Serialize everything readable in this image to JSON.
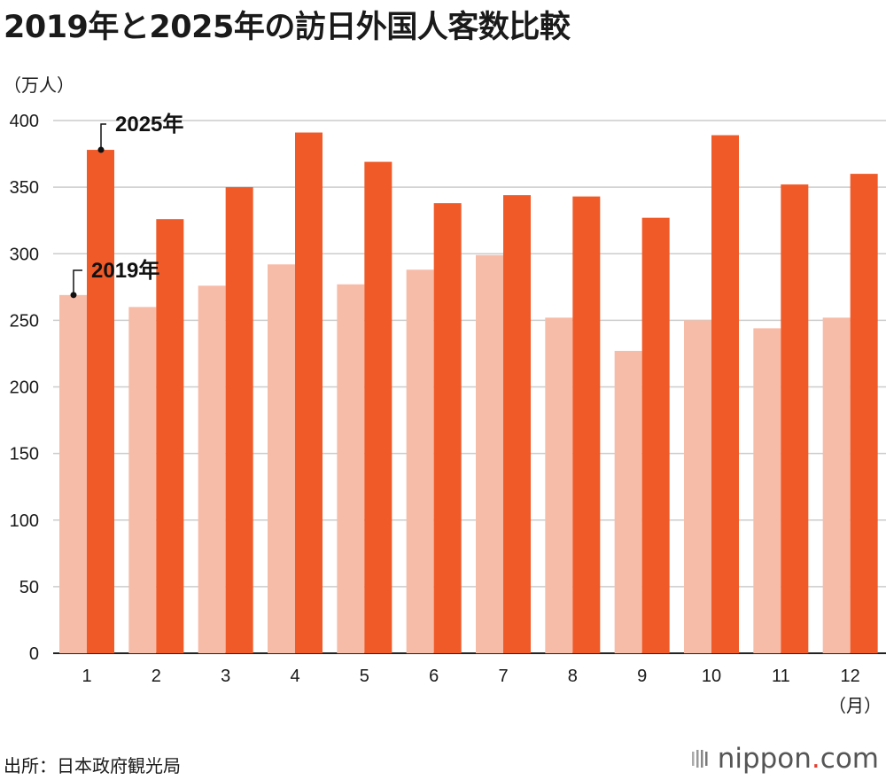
{
  "header": {
    "title": "2019年と2025年の訪日外国人客数比較"
  },
  "footer": {
    "source": "出所：日本政府観光局",
    "logo_main": "nippon",
    "logo_dot": ".",
    "logo_tail": "com"
  },
  "chart_data": {
    "type": "bar",
    "ylabel": "（万人）",
    "xunit": "（月）",
    "ylim": [
      0,
      400
    ],
    "yticks": [
      0,
      50,
      100,
      150,
      200,
      250,
      300,
      350,
      400
    ],
    "categories": [
      "1",
      "2",
      "3",
      "4",
      "5",
      "6",
      "7",
      "8",
      "9",
      "10",
      "11",
      "12"
    ],
    "grid": true,
    "series": [
      {
        "name": "2019年",
        "color": "#f7bca8",
        "values": [
          269,
          260,
          276,
          292,
          277,
          288,
          299,
          252,
          227,
          250,
          244,
          252
        ]
      },
      {
        "name": "2025年",
        "color": "#f05a28",
        "values": [
          378,
          326,
          350,
          391,
          369,
          338,
          344,
          343,
          327,
          389,
          352,
          360
        ]
      }
    ]
  }
}
